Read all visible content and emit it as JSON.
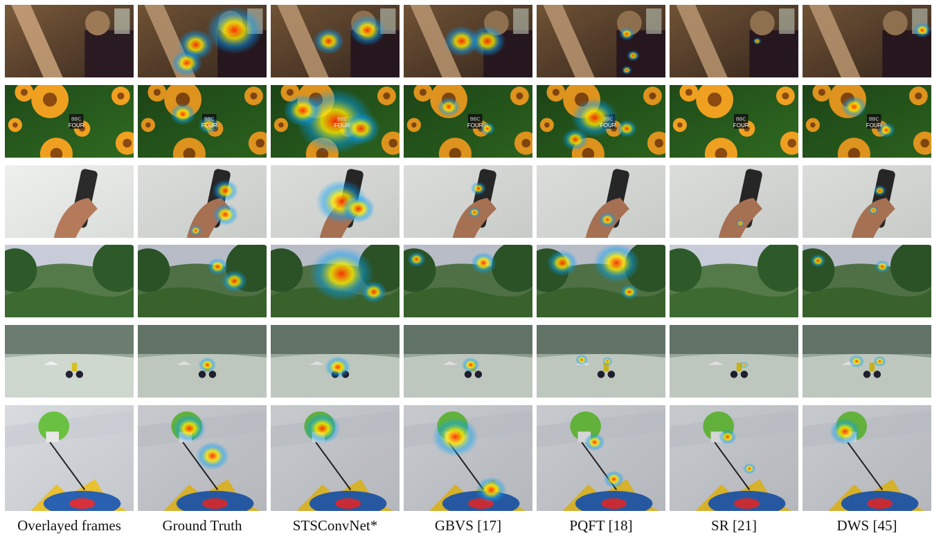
{
  "columns": [
    {
      "key": "overlay",
      "label": "Overlayed frames"
    },
    {
      "key": "gt",
      "label": "Ground Truth"
    },
    {
      "key": "stsconvnet",
      "label": "STSConvNet*"
    },
    {
      "key": "gbvs",
      "label": "GBVS [17]"
    },
    {
      "key": "pqft",
      "label": "PQFT [18]"
    },
    {
      "key": "sr",
      "label": "SR [21]"
    },
    {
      "key": "dws",
      "label": "DWS [45]"
    }
  ],
  "rows": [
    {
      "scene": "man-at-harp",
      "palette": [
        "#7a5a3a",
        "#3a2a20",
        "#c9a27a",
        "#9b7a55"
      ]
    },
    {
      "scene": "orange-flowers",
      "palette": [
        "#1f4a1a",
        "#2f6a20",
        "#f0a020",
        "#f2c030"
      ],
      "overlay_text": [
        "BBC",
        "FOUR"
      ]
    },
    {
      "scene": "hand-holding-phone",
      "palette": [
        "#eef0ee",
        "#d9ddd9",
        "#b57a5a",
        "#2a2a2a"
      ]
    },
    {
      "scene": "forest-hillside",
      "palette": [
        "#2e5a2a",
        "#557a4a",
        "#c8ccd8",
        "#3d6a30"
      ]
    },
    {
      "scene": "motocross-rider",
      "palette": [
        "#aebbb2",
        "#8ea090",
        "#cfd8cf",
        "#6a7d70"
      ]
    },
    {
      "scene": "toy-robot-target",
      "palette": [
        "#d8dbe0",
        "#c4c7cc",
        "#e8c030",
        "#2a60b0"
      ]
    }
  ],
  "colors": {
    "heat_core": "#ff2a00",
    "heat_mid": "#ffee00",
    "heat_edge": "#00a0ff"
  }
}
